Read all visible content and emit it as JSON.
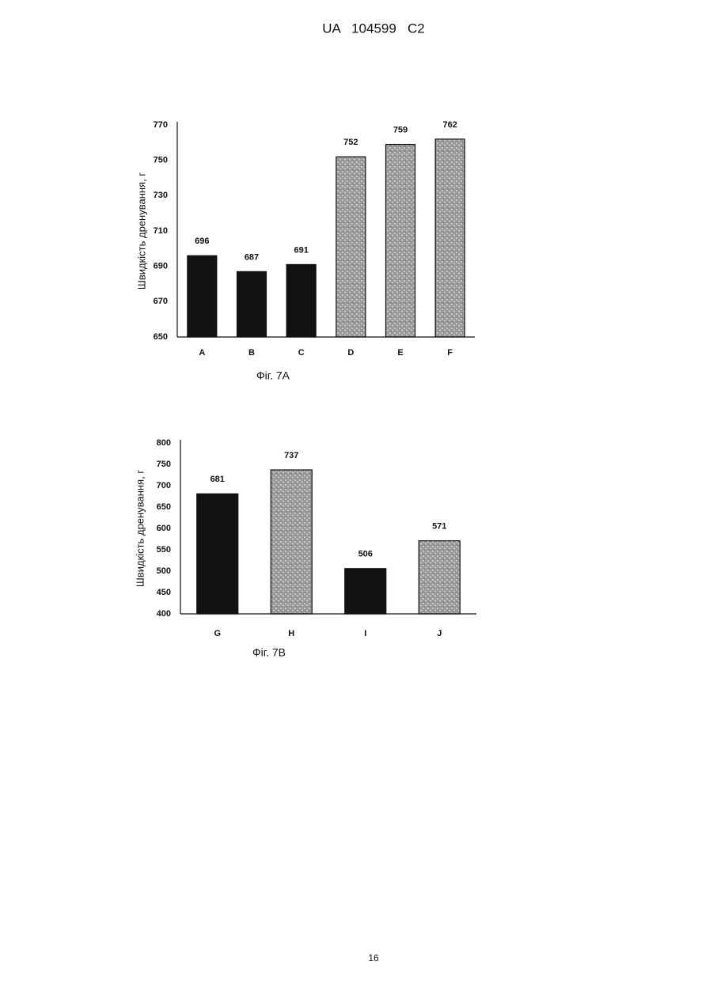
{
  "header": {
    "title": "UA   104599   C2"
  },
  "chart_data": [
    {
      "type": "bar",
      "y_label": "Швидкість дренування, г",
      "caption": "Фіг. 7А",
      "categories": [
        "A",
        "B",
        "C",
        "D",
        "E",
        "F"
      ],
      "values": [
        696,
        687,
        691,
        752,
        759,
        762
      ],
      "colors": [
        "#111111",
        "#111111",
        "#111111",
        "#9a9a9a",
        "#9a9a9a",
        "#9a9a9a"
      ],
      "patterns": [
        "solid",
        "solid",
        "solid",
        "stipple",
        "stipple",
        "stipple"
      ],
      "ylim": [
        650,
        770
      ],
      "yticks": [
        650,
        670,
        690,
        710,
        730,
        750,
        770
      ],
      "grid": false
    },
    {
      "type": "bar",
      "y_label": "Швидкість дренування, г",
      "caption": "Фіг. 7В",
      "categories": [
        "G",
        "H",
        "I",
        "J"
      ],
      "values": [
        681,
        737,
        506,
        571
      ],
      "colors": [
        "#111111",
        "#9a9a9a",
        "#111111",
        "#9a9a9a"
      ],
      "patterns": [
        "solid",
        "stipple",
        "solid",
        "stipple"
      ],
      "ylim": [
        400,
        800
      ],
      "yticks": [
        400,
        450,
        500,
        550,
        600,
        650,
        700,
        750,
        800
      ],
      "grid": false
    }
  ],
  "page_number": "16"
}
